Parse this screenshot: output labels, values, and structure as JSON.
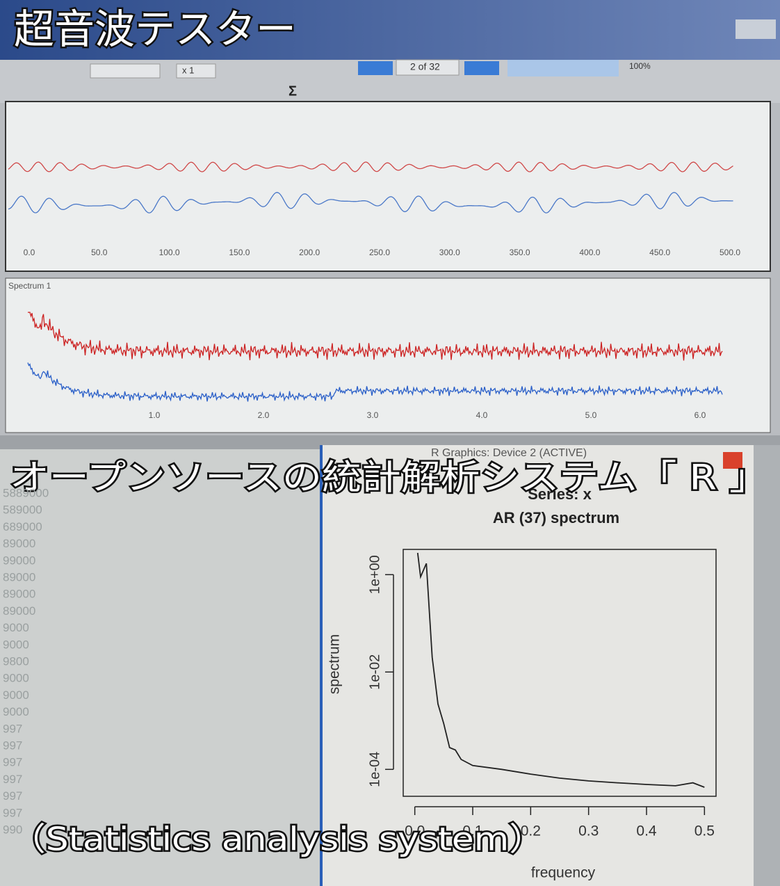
{
  "captions": {
    "title": "超音波テスター",
    "subtitle": "オープンソースの統計解析システム「 R 」",
    "english": "（Statistics analysis system）"
  },
  "toolbar": {
    "zoom": "x 1",
    "page": "2 of 32",
    "percent": "100%",
    "sum": "Σ"
  },
  "waveform_panel": {
    "x_ticks": [
      "0.0",
      "50.0",
      "100.0",
      "150.0",
      "200.0",
      "250.0",
      "300.0",
      "350.0",
      "400.0",
      "450.0",
      "500.0"
    ]
  },
  "spectrum_panel": {
    "label": "Spectrum 1",
    "x_ticks": [
      "1.0",
      "2.0",
      "3.0",
      "4.0",
      "5.0",
      "6.0"
    ]
  },
  "r_window": {
    "title": "R Graphics: Device 2 (ACTIVE)"
  },
  "console_lines": [
    "5889000",
    "589000",
    "689000",
    "89000",
    "99000",
    "89000",
    "89000",
    "89000",
    "9000",
    "9000",
    "9800",
    "9000",
    "9000",
    "9000",
    "997",
    "997",
    "997",
    "997",
    "997",
    "997",
    "990"
  ],
  "r_plot": {
    "type": "line",
    "title": "Series: x",
    "subtitle": "AR (37) spectrum",
    "x_label": "frequency",
    "y_label": "spectrum",
    "log_y": true,
    "color": "#222222",
    "x": [
      0.005,
      0.01,
      0.02,
      0.03,
      0.04,
      0.05,
      0.06,
      0.07,
      0.08,
      0.1,
      0.15,
      0.2,
      0.25,
      0.3,
      0.35,
      0.4,
      0.45,
      0.48,
      0.5
    ],
    "values": [
      2.8,
      0.9,
      1.7,
      0.02,
      0.0022,
      0.00087,
      0.00028,
      0.00025,
      0.00016,
      0.00012,
      0.0001,
      8e-05,
      6.6e-05,
      5.8e-05,
      5.3e-05,
      4.9e-05,
      4.6e-05,
      5.3e-05,
      4.3e-05
    ],
    "xlim": [
      -0.02,
      0.52
    ],
    "ylim": [
      2.8e-05,
      3.3
    ],
    "xticks": [
      {
        "value": 0,
        "label": "0.0"
      },
      {
        "value": 0.1,
        "label": "0.1"
      },
      {
        "value": 0.2,
        "label": "0.2"
      },
      {
        "value": 0.3,
        "label": "0.3"
      },
      {
        "value": 0.4,
        "label": "0.4"
      },
      {
        "value": 0.5,
        "label": "0.5"
      }
    ],
    "yticks": [
      {
        "value": 1,
        "label": "1e+00"
      },
      {
        "value": 0.01,
        "label": "1e-02"
      },
      {
        "value": 0.0001,
        "label": "1e-04"
      }
    ]
  }
}
